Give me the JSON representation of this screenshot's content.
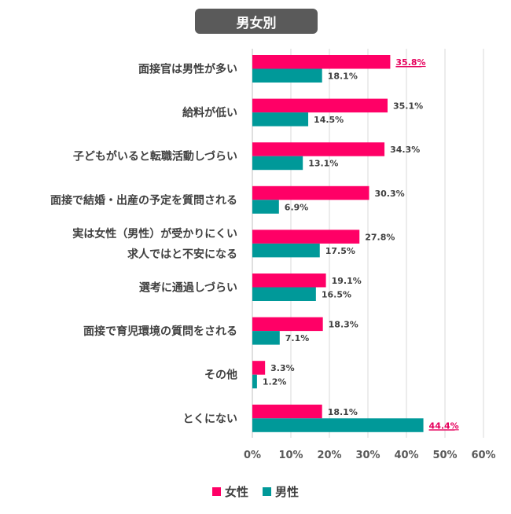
{
  "colors": {
    "female": "#ff0066",
    "male": "#009999",
    "highlight_text": "#e6005c",
    "grid": "#d9d9d9"
  },
  "chart_data": {
    "type": "bar",
    "orientation": "horizontal",
    "title": "男女別",
    "categories": [
      [
        "面接官は男性が多い"
      ],
      [
        "給料が低い"
      ],
      [
        "子どもがいると転職活動しづらい"
      ],
      [
        "面接で結婚・出産の予定を質問される"
      ],
      [
        "実は女性（男性）が受かりにくい",
        "求人ではと不安になる"
      ],
      [
        "選考に通過しづらい"
      ],
      [
        "面接で育児環境の質問をされる"
      ],
      [
        "その他"
      ],
      [
        "とくにない"
      ]
    ],
    "series": [
      {
        "name": "女性",
        "values": [
          35.8,
          35.1,
          34.3,
          30.3,
          27.8,
          19.1,
          18.3,
          3.3,
          18.1
        ],
        "labels": [
          "35.8%",
          "35.1%",
          "34.3%",
          "30.3%",
          "27.8%",
          "19.1%",
          "18.3%",
          "3.3%",
          "18.1%"
        ]
      },
      {
        "name": "男性",
        "values": [
          18.1,
          14.5,
          13.1,
          6.9,
          17.5,
          16.5,
          7.1,
          1.2,
          44.4
        ],
        "labels": [
          "18.1%",
          "14.5%",
          "13.1%",
          "6.9%",
          "17.5%",
          "16.5%",
          "7.1%",
          "1.2%",
          "44.4%"
        ]
      }
    ],
    "highlighted": [
      {
        "series": 0,
        "index": 0
      },
      {
        "series": 1,
        "index": 8
      }
    ],
    "xlim": [
      0,
      60
    ],
    "xticks": [
      0,
      10,
      20,
      30,
      40,
      50,
      60
    ],
    "xtick_labels": [
      "0%",
      "10%",
      "20%",
      "30%",
      "40%",
      "50%",
      "60%"
    ],
    "grid": true,
    "legend_position": "bottom"
  }
}
